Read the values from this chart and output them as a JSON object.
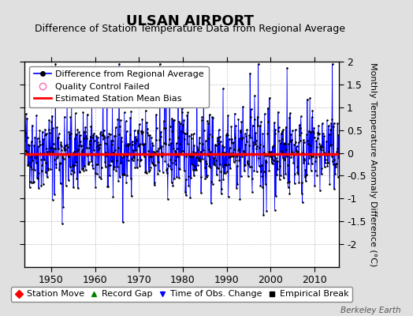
{
  "title": "ULSAN AIRPORT",
  "subtitle": "Difference of Station Temperature Data from Regional Average",
  "ylabel": "Monthly Temperature Anomaly Difference (°C)",
  "xlabel_ticks": [
    1950,
    1960,
    1970,
    1980,
    1990,
    2000,
    2010
  ],
  "ylim": [
    -2.5,
    2.0
  ],
  "yticks": [
    -2.0,
    -1.5,
    -1.0,
    -0.5,
    0.0,
    0.5,
    1.0,
    1.5,
    2.0
  ],
  "xlim": [
    1944.0,
    2015.5
  ],
  "mean_bias": -0.02,
  "seed": 42,
  "n_points": 840,
  "line_color": "#0000FF",
  "dot_color": "#000000",
  "bias_color": "#FF0000",
  "background_color": "#E0E0E0",
  "plot_bg_color": "#FFFFFF",
  "title_fontsize": 13,
  "subtitle_fontsize": 9,
  "ylabel_fontsize": 8,
  "tick_fontsize": 9,
  "legend_fontsize": 8,
  "watermark": "Berkeley Earth",
  "ytick_labels": [
    "",
    "-1.5",
    "-1",
    "-0.5",
    "0",
    "0.5",
    "1",
    "1.5",
    "2"
  ]
}
